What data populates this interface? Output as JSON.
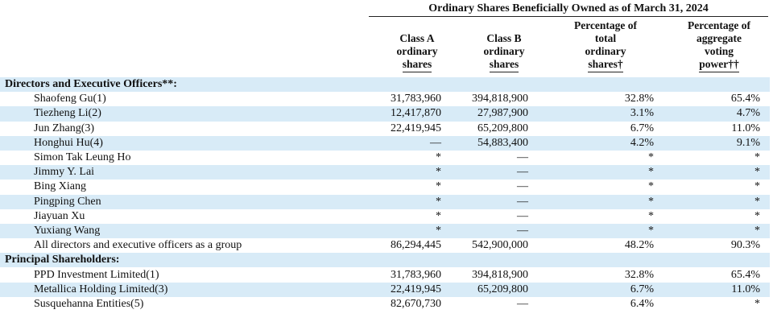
{
  "header": {
    "title": "Ordinary Shares Beneficially Owned as of March 31, 2024",
    "columns": [
      {
        "label_lines": [
          "Class A",
          "ordinary",
          "shares"
        ]
      },
      {
        "label_lines": [
          "Class B",
          "ordinary",
          "shares"
        ]
      },
      {
        "label_lines": [
          "Percentage of",
          "total",
          "ordinary",
          "shares†"
        ]
      },
      {
        "label_lines": [
          "Percentage of",
          "aggregate",
          "voting",
          "power††"
        ]
      }
    ]
  },
  "rows": [
    {
      "type": "section",
      "label": "Directors and Executive Officers**:"
    },
    {
      "type": "data",
      "name": "Shaofeng Gu(1)",
      "class_a": "31,783,960",
      "class_b": "394,818,900",
      "pct_total": "32.8%",
      "pct_voting": "65.4%"
    },
    {
      "type": "data",
      "name": "Tiezheng Li(2)",
      "class_a": "12,417,870",
      "class_b": "27,987,900",
      "pct_total": "3.1%",
      "pct_voting": "4.7%"
    },
    {
      "type": "data",
      "name": "Jun Zhang(3)",
      "class_a": "22,419,945",
      "class_b": "65,209,800",
      "pct_total": "6.7%",
      "pct_voting": "11.0%"
    },
    {
      "type": "data",
      "name": "Honghui Hu(4)",
      "class_a": "—",
      "class_b": "54,883,400",
      "pct_total": "4.2%",
      "pct_voting": "9.1%"
    },
    {
      "type": "data",
      "name": "Simon Tak Leung Ho",
      "class_a": "*",
      "class_b": "—",
      "pct_total": "*",
      "pct_voting": "*"
    },
    {
      "type": "data",
      "name": "Jimmy Y. Lai",
      "class_a": "*",
      "class_b": "—",
      "pct_total": "*",
      "pct_voting": "*"
    },
    {
      "type": "data",
      "name": "Bing Xiang",
      "class_a": "*",
      "class_b": "—",
      "pct_total": "*",
      "pct_voting": "*"
    },
    {
      "type": "data",
      "name": "Pingping Chen",
      "class_a": "*",
      "class_b": "—",
      "pct_total": "*",
      "pct_voting": "*"
    },
    {
      "type": "data",
      "name": "Jiayuan Xu",
      "class_a": "*",
      "class_b": "—",
      "pct_total": "*",
      "pct_voting": "*"
    },
    {
      "type": "data",
      "name": "Yuxiang Wang",
      "class_a": "*",
      "class_b": "—",
      "pct_total": "*",
      "pct_voting": "*"
    },
    {
      "type": "data",
      "name": "All directors and executive officers as a group",
      "class_a": "86,294,445",
      "class_b": "542,900,000",
      "pct_total": "48.2%",
      "pct_voting": "90.3%"
    },
    {
      "type": "section",
      "label": "Principal Shareholders:"
    },
    {
      "type": "data",
      "name": "PPD Investment Limited(1)",
      "class_a": "31,783,960",
      "class_b": "394,818,900",
      "pct_total": "32.8%",
      "pct_voting": "65.4%"
    },
    {
      "type": "data",
      "name": "Metallica Holding Limited(3)",
      "class_a": "22,419,945",
      "class_b": "65,209,800",
      "pct_total": "6.7%",
      "pct_voting": "11.0%"
    },
    {
      "type": "data",
      "name": "Susquehanna Entities(5)",
      "class_a": "82,670,730",
      "class_b": "—",
      "pct_total": "6.4%",
      "pct_voting": "*"
    }
  ],
  "colors": {
    "row_shade": "#d8ebf7",
    "text": "#111111"
  }
}
